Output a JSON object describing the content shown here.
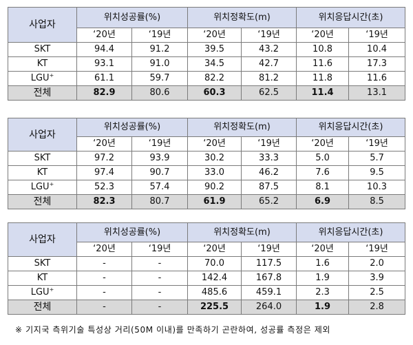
{
  "headers": {
    "company": "사업자",
    "success_rate": "위치성공률(%)",
    "accuracy": "위치정확도(m)",
    "response_time": "위치응답시간(초)",
    "year_20": "‘20년",
    "year_19": "‘19년"
  },
  "tables": [
    {
      "rows": [
        {
          "name": "SKT",
          "sup": "",
          "v": [
            "94.4",
            "91.2",
            "39.5",
            "43.2",
            "10.8",
            "10.4"
          ]
        },
        {
          "name": "KT",
          "sup": "",
          "v": [
            "93.1",
            "91.0",
            "34.5",
            "42.7",
            "11.6",
            "17.3"
          ]
        },
        {
          "name": "LGU",
          "sup": "+",
          "v": [
            "61.1",
            "59.7",
            "82.2",
            "81.2",
            "11.8",
            "11.6"
          ]
        }
      ],
      "total": {
        "name": "전체",
        "v": [
          "82.9",
          "80.6",
          "60.3",
          "62.5",
          "11.4",
          "13.1"
        ]
      }
    },
    {
      "rows": [
        {
          "name": "SKT",
          "sup": "",
          "v": [
            "97.2",
            "93.9",
            "30.2",
            "33.3",
            "5.0",
            "5.7"
          ]
        },
        {
          "name": "KT",
          "sup": "",
          "v": [
            "97.4",
            "90.7",
            "33.0",
            "46.2",
            "7.6",
            "9.5"
          ]
        },
        {
          "name": "LGU",
          "sup": "+",
          "v": [
            "52.3",
            "57.4",
            "90.2",
            "87.5",
            "8.1",
            "10.3"
          ]
        }
      ],
      "total": {
        "name": "전체",
        "v": [
          "82.3",
          "80.7",
          "61.9",
          "65.2",
          "6.9",
          "8.5"
        ]
      }
    },
    {
      "rows": [
        {
          "name": "SKT",
          "sup": "",
          "v": [
            "-",
            "-",
            "70.0",
            "117.5",
            "1.6",
            "2.0"
          ]
        },
        {
          "name": "KT",
          "sup": "",
          "v": [
            "-",
            "-",
            "142.4",
            "167.8",
            "1.9",
            "3.9"
          ]
        },
        {
          "name": "LGU",
          "sup": "+",
          "v": [
            "-",
            "-",
            "485.6",
            "459.1",
            "2.3",
            "2.5"
          ]
        }
      ],
      "total": {
        "name": "전체",
        "v": [
          "-",
          "-",
          "225.5",
          "264.0",
          "1.9",
          "2.8"
        ]
      }
    }
  ],
  "footnote": "※ 기지국 측위기술 특성상 거리(50M 이내)를 만족하기 곤란하여, 성공률 측정은 제외"
}
